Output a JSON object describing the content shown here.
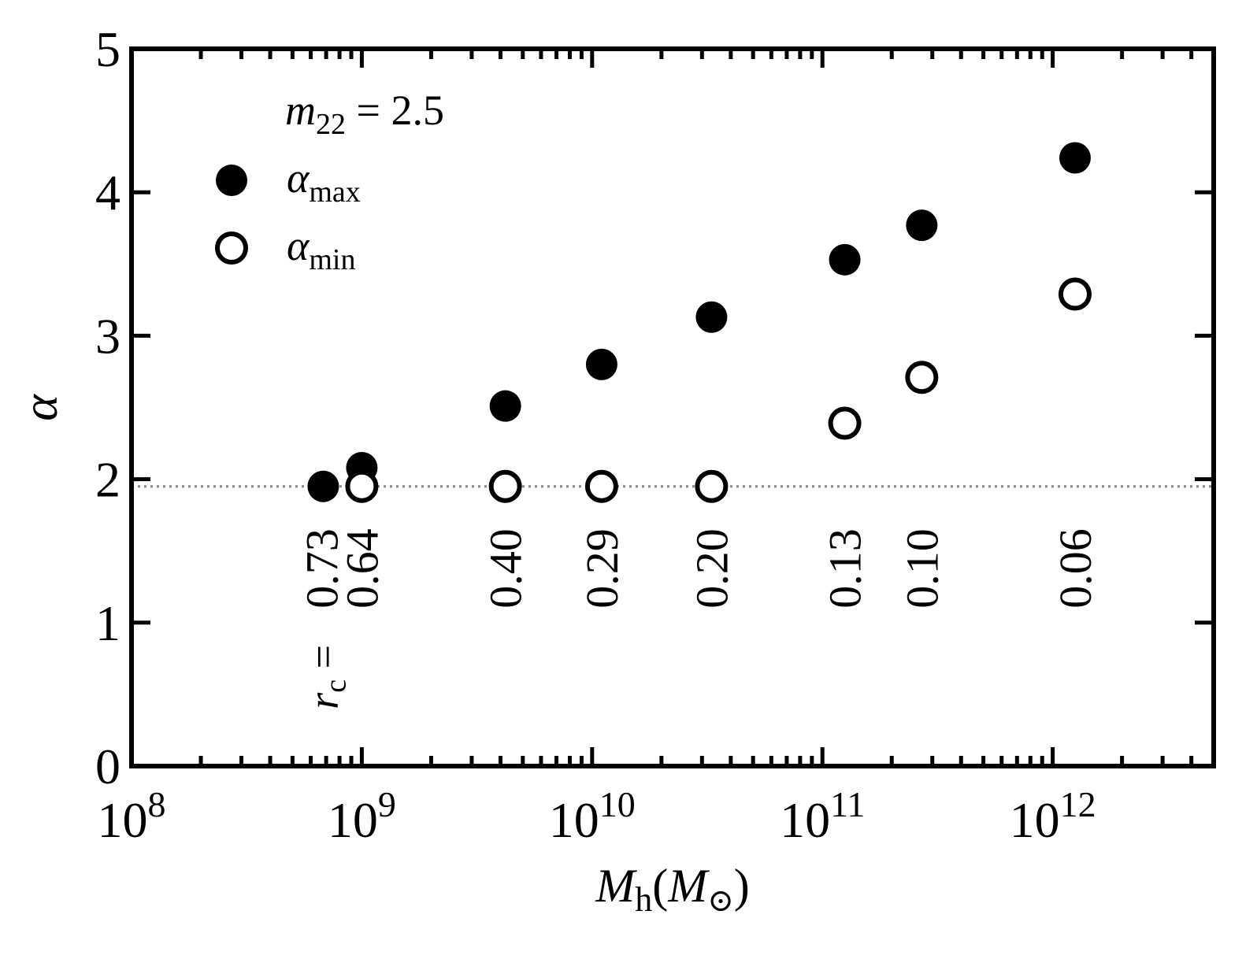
{
  "chart_data": {
    "type": "scatter",
    "x_scale": "log",
    "xlim": [
      100000000,
      5000000000000
    ],
    "ylim": [
      0,
      5
    ],
    "ylabel": "α",
    "xlabel_base": "M",
    "xlabel_sub": "h",
    "xlabel_paren_open": "(",
    "xlabel_unit": "M",
    "xlabel_unit_sub": "⊙",
    "xlabel_paren_close": ")",
    "x_tick_labels": [
      {
        "value": 100000000,
        "base": "10",
        "exp": "8"
      },
      {
        "value": 1000000000,
        "base": "10",
        "exp": "9"
      },
      {
        "value": 10000000000,
        "base": "10",
        "exp": "10"
      },
      {
        "value": 100000000000,
        "base": "10",
        "exp": "11"
      },
      {
        "value": 1000000000000,
        "base": "10",
        "exp": "12"
      }
    ],
    "y_ticks": [
      0,
      1,
      2,
      3,
      4,
      5
    ],
    "y_tick_labels": [
      "0",
      "1",
      "2",
      "3",
      "4",
      "5"
    ],
    "reference_line": {
      "y": 1.95,
      "style": "dotted",
      "color": "#888888"
    },
    "annotation": {
      "var": "m",
      "sub": "22",
      "rest": " = 2.5"
    },
    "legend": {
      "placement": "top-left",
      "entries": [
        {
          "marker": "filled",
          "symbol": "α",
          "sub": "max"
        },
        {
          "marker": "open",
          "symbol": "α",
          "sub": "min"
        }
      ]
    },
    "series": [
      {
        "name": "α_max",
        "marker": "filled",
        "x": [
          680000000,
          1000000000,
          4200000000,
          11000000000,
          33000000000,
          125000000000,
          270000000000,
          1250000000000
        ],
        "y": [
          1.95,
          2.08,
          2.51,
          2.8,
          3.13,
          3.53,
          3.77,
          4.24
        ]
      },
      {
        "name": "α_min",
        "marker": "open",
        "x": [
          1000000000,
          4200000000,
          11000000000,
          33000000000,
          125000000000,
          270000000000,
          1250000000000
        ],
        "y": [
          1.95,
          1.95,
          1.95,
          1.95,
          2.39,
          2.71,
          3.29
        ]
      }
    ],
    "rc_prefix_var": "r",
    "rc_prefix_sub": "c",
    "rc_prefix_eq": " = ",
    "rc_labels": [
      {
        "x": 680000000,
        "text": "0.73"
      },
      {
        "x": 1000000000,
        "text": "0.64"
      },
      {
        "x": 4200000000,
        "text": "0.40"
      },
      {
        "x": 11000000000,
        "text": "0.29"
      },
      {
        "x": 33000000000,
        "text": "0.20"
      },
      {
        "x": 125000000000,
        "text": "0.13"
      },
      {
        "x": 270000000000,
        "text": "0.10"
      },
      {
        "x": 1250000000000,
        "text": "0.06"
      }
    ]
  }
}
